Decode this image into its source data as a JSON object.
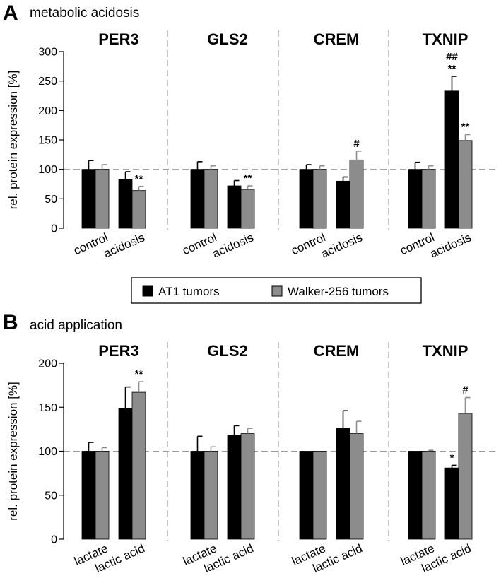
{
  "legend": [
    {
      "name": "AT1 tumors",
      "color": "#000000"
    },
    {
      "name": "Walker-256 tumors",
      "color": "#8c8c8c"
    }
  ],
  "chart_data": [
    {
      "type": "bar",
      "panel": "A",
      "title": "metabolic acidosis",
      "ylabel": "rel. protein expression  [%]",
      "ylim": [
        0,
        300
      ],
      "yticks": [
        0,
        50,
        100,
        150,
        200,
        250,
        300
      ],
      "reference_line": 100,
      "groups": [
        {
          "gene": "PER3",
          "categories": [
            "control",
            "acidosis"
          ],
          "series": [
            {
              "values": [
                100,
                83
              ],
              "errors": [
                15,
                13
              ]
            },
            {
              "values": [
                100,
                64
              ],
              "errors": [
                8,
                7
              ]
            }
          ],
          "annotations": [
            {
              "category": 1,
              "series": 1,
              "text": "**"
            }
          ]
        },
        {
          "gene": "GLS2",
          "categories": [
            "control",
            "acidosis"
          ],
          "series": [
            {
              "values": [
                100,
                72
              ],
              "errors": [
                13,
                9
              ]
            },
            {
              "values": [
                100,
                66
              ],
              "errors": [
                6,
                6
              ]
            }
          ],
          "annotations": [
            {
              "category": 1,
              "series": 1,
              "text": "**"
            }
          ]
        },
        {
          "gene": "CREM",
          "categories": [
            "control",
            "acidosis"
          ],
          "series": [
            {
              "values": [
                100,
                80
              ],
              "errors": [
                8,
                7
              ]
            },
            {
              "values": [
                100,
                116
              ],
              "errors": [
                6,
                15
              ]
            }
          ],
          "annotations": [
            {
              "category": 1,
              "series": 1,
              "text": "#"
            }
          ]
        },
        {
          "gene": "TXNIP",
          "categories": [
            "control",
            "acidosis"
          ],
          "series": [
            {
              "values": [
                100,
                233
              ],
              "errors": [
                12,
                25
              ]
            },
            {
              "values": [
                100,
                149
              ],
              "errors": [
                6,
                10
              ]
            }
          ],
          "annotations": [
            {
              "category": 1,
              "series": 0,
              "text": "**"
            },
            {
              "category": 1,
              "series": 0,
              "text": "##"
            },
            {
              "category": 1,
              "series": 1,
              "text": "**"
            }
          ]
        }
      ]
    },
    {
      "type": "bar",
      "panel": "B",
      "title": "acid application",
      "ylabel": "rel. protein expression  [%]",
      "ylim": [
        0,
        200
      ],
      "yticks": [
        0,
        50,
        100,
        150,
        200
      ],
      "reference_line": 100,
      "groups": [
        {
          "gene": "PER3",
          "categories": [
            "lactate",
            "lactic acid"
          ],
          "series": [
            {
              "values": [
                100,
                149
              ],
              "errors": [
                10,
                24
              ]
            },
            {
              "values": [
                100,
                167
              ],
              "errors": [
                4,
                12
              ]
            }
          ],
          "annotations": [
            {
              "category": 1,
              "series": 1,
              "text": "**"
            }
          ]
        },
        {
          "gene": "GLS2",
          "categories": [
            "lactate",
            "lactic acid"
          ],
          "series": [
            {
              "values": [
                100,
                118
              ],
              "errors": [
                17,
                11
              ]
            },
            {
              "values": [
                100,
                120
              ],
              "errors": [
                5,
                6
              ]
            }
          ],
          "annotations": []
        },
        {
          "gene": "CREM",
          "categories": [
            "lactate",
            "lactic acid"
          ],
          "series": [
            {
              "values": [
                100,
                126
              ],
              "errors": [
                0,
                20
              ]
            },
            {
              "values": [
                100,
                120
              ],
              "errors": [
                0,
                14
              ]
            }
          ],
          "annotations": []
        },
        {
          "gene": "TXNIP",
          "categories": [
            "lactate",
            "lactic acid"
          ],
          "series": [
            {
              "values": [
                100,
                81
              ],
              "errors": [
                0,
                3
              ]
            },
            {
              "values": [
                100,
                143
              ],
              "errors": [
                1,
                18
              ]
            }
          ],
          "annotations": [
            {
              "category": 1,
              "series": 0,
              "text": "*"
            },
            {
              "category": 1,
              "series": 1,
              "text": "#"
            }
          ]
        }
      ]
    }
  ]
}
